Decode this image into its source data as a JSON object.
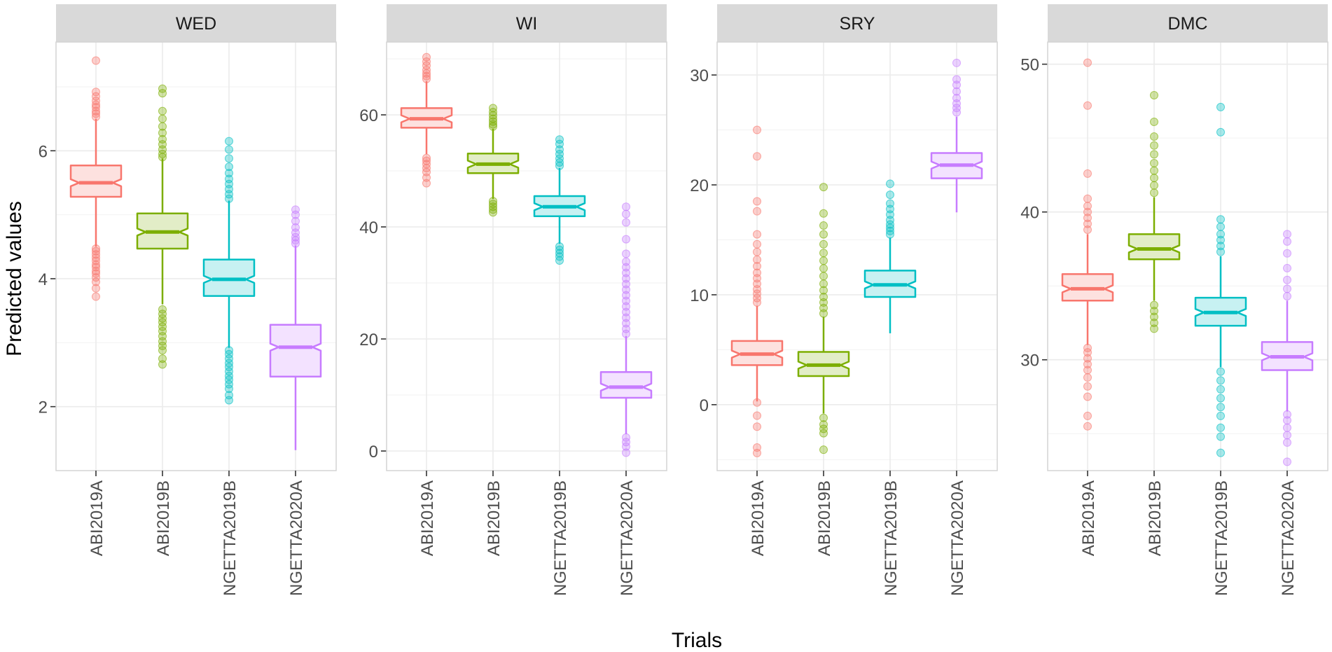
{
  "chart_data": {
    "type": "box",
    "layout": "facet_wrap 1x4, free y scales",
    "xlabel": "Trials",
    "ylabel": "Predicted values",
    "categories": [
      "ABI2019A",
      "ABI2019B",
      "NGETTA2019B",
      "NGETTA2020A"
    ],
    "colors": [
      "#F8766D",
      "#7CAE00",
      "#00BFC4",
      "#C77CFF"
    ],
    "grid": true,
    "panels": [
      {
        "title": "WED",
        "ylim": [
          1.0,
          7.7
        ],
        "yticks": [
          2,
          4,
          6
        ],
        "boxes": [
          {
            "category": "ABI2019A",
            "min": 4.5,
            "q1": 5.28,
            "median": 5.5,
            "q3": 5.77,
            "max": 6.5,
            "outliers": [
              3.72,
              3.85,
              3.95,
              4.02,
              4.08,
              4.12,
              4.18,
              4.22,
              4.28,
              4.33,
              4.38,
              4.43,
              4.47,
              6.53,
              6.58,
              6.62,
              6.68,
              6.72,
              6.78,
              6.85,
              6.92,
              7.41
            ]
          },
          {
            "category": "ABI2019B",
            "min": 3.6,
            "q1": 4.47,
            "median": 4.73,
            "q3": 5.02,
            "max": 5.88,
            "outliers": [
              2.66,
              2.75,
              2.88,
              2.95,
              3.02,
              3.1,
              3.18,
              3.25,
              3.32,
              3.38,
              3.45,
              3.52,
              5.9,
              5.95,
              6.02,
              6.1,
              6.18,
              6.28,
              6.38,
              6.5,
              6.62,
              6.9,
              6.97
            ]
          },
          {
            "category": "NGETTA2019B",
            "min": 2.92,
            "q1": 3.73,
            "median": 3.99,
            "q3": 4.3,
            "max": 5.22,
            "outliers": [
              2.1,
              2.18,
              2.28,
              2.35,
              2.42,
              2.48,
              2.55,
              2.62,
              2.68,
              2.75,
              2.82,
              2.88,
              5.25,
              5.32,
              5.4,
              5.48,
              5.56,
              5.65,
              5.75,
              5.88,
              6.02,
              6.15
            ]
          },
          {
            "category": "NGETTA2020A",
            "min": 1.32,
            "q1": 2.47,
            "median": 2.93,
            "q3": 3.28,
            "max": 4.52,
            "outliers": [
              4.55,
              4.6,
              4.65,
              4.72,
              4.8,
              4.9,
              5.0,
              5.08
            ]
          }
        ]
      },
      {
        "title": "WI",
        "ylim": [
          -3.5,
          73
        ],
        "yticks": [
          0,
          20,
          40,
          60
        ],
        "boxes": [
          {
            "category": "ABI2019A",
            "min": 53.0,
            "q1": 57.7,
            "median": 59.3,
            "q3": 61.2,
            "max": 66.0,
            "outliers": [
              47.8,
              48.8,
              49.8,
              50.5,
              51.2,
              51.8,
              52.3,
              66.4,
              66.9,
              67.4,
              68.0,
              68.8,
              69.5,
              70.3
            ]
          },
          {
            "category": "ABI2019B",
            "min": 45.0,
            "q1": 49.6,
            "median": 51.2,
            "q3": 53.1,
            "max": 57.5,
            "outliers": [
              42.6,
              43.1,
              43.6,
              44.1,
              44.6,
              57.9,
              58.3,
              58.8,
              59.3,
              59.9,
              60.5,
              61.2
            ]
          },
          {
            "category": "NGETTA2019B",
            "min": 37.0,
            "q1": 41.9,
            "median": 43.6,
            "q3": 45.5,
            "max": 50.5,
            "outliers": [
              34.0,
              34.7,
              35.3,
              35.9,
              36.5,
              50.9,
              51.5,
              52.2,
              53.0,
              53.8,
              54.8,
              55.6
            ]
          },
          {
            "category": "NGETTA2020A",
            "min": 3.0,
            "q1": 9.5,
            "median": 11.4,
            "q3": 14.1,
            "max": 20.5,
            "outliers": [
              -0.3,
              0.8,
              1.6,
              2.4,
              20.9,
              21.8,
              22.8,
              23.8,
              24.8,
              25.8,
              26.8,
              27.8,
              28.8,
              29.8,
              30.8,
              31.8,
              32.8,
              33.8,
              35.2,
              37.8,
              40.8,
              42.3,
              43.6
            ]
          }
        ]
      },
      {
        "title": "SRY",
        "ylim": [
          -6.0,
          33.0
        ],
        "yticks": [
          0,
          10,
          20,
          30
        ],
        "boxes": [
          {
            "category": "ABI2019A",
            "min": 0.3,
            "q1": 3.6,
            "median": 4.6,
            "q3": 5.8,
            "max": 9.0,
            "outliers": [
              -4.4,
              -3.9,
              -2.0,
              -1.0,
              0.2,
              9.3,
              9.7,
              10.1,
              10.5,
              11.0,
              11.5,
              12.0,
              12.6,
              13.2,
              13.9,
              14.6,
              15.5,
              17.6,
              18.5,
              22.6,
              25.0
            ]
          },
          {
            "category": "ABI2019B",
            "min": -0.8,
            "q1": 2.6,
            "median": 3.6,
            "q3": 4.8,
            "max": 8.0,
            "outliers": [
              -4.1,
              -2.6,
              -2.2,
              -1.8,
              -1.2,
              8.3,
              8.8,
              9.3,
              9.8,
              10.4,
              11.0,
              11.7,
              12.4,
              13.1,
              13.8,
              14.6,
              15.5,
              16.3,
              17.4,
              19.8
            ]
          },
          {
            "category": "NGETTA2019B",
            "min": 6.5,
            "q1": 9.8,
            "median": 10.9,
            "q3": 12.2,
            "max": 15.2,
            "outliers": [
              15.5,
              15.8,
              16.1,
              16.4,
              16.8,
              17.3,
              17.8,
              18.3,
              19.1,
              20.1
            ]
          },
          {
            "category": "NGETTA2020A",
            "min": 17.5,
            "q1": 20.6,
            "median": 21.8,
            "q3": 22.9,
            "max": 26.2,
            "outliers": [
              26.6,
              27.0,
              27.4,
              27.9,
              28.5,
              29.1,
              29.6,
              31.1
            ]
          }
        ]
      },
      {
        "title": "DMC",
        "ylim": [
          22.5,
          51.5
        ],
        "yticks": [
          30,
          40,
          50
        ],
        "boxes": [
          {
            "category": "ABI2019A",
            "min": 31.0,
            "q1": 34.0,
            "median": 34.8,
            "q3": 35.8,
            "max": 38.5,
            "outliers": [
              25.5,
              26.2,
              27.5,
              28.2,
              28.8,
              29.3,
              29.7,
              30.1,
              30.5,
              30.8,
              38.8,
              39.2,
              39.6,
              40.0,
              40.4,
              40.9,
              42.6,
              47.2,
              50.1
            ]
          },
          {
            "category": "ABI2019B",
            "min": 34.0,
            "q1": 36.8,
            "median": 37.5,
            "q3": 38.5,
            "max": 41.0,
            "outliers": [
              32.1,
              32.5,
              32.9,
              33.3,
              33.7,
              41.3,
              41.8,
              42.3,
              42.8,
              43.3,
              43.9,
              44.5,
              45.1,
              46.1,
              47.9
            ]
          },
          {
            "category": "NGETTA2019B",
            "min": 29.5,
            "q1": 32.3,
            "median": 33.2,
            "q3": 34.2,
            "max": 37.0,
            "outliers": [
              23.7,
              24.8,
              25.4,
              26.2,
              26.8,
              27.4,
              28.0,
              28.6,
              29.2,
              37.3,
              37.7,
              38.1,
              38.5,
              39.0,
              39.5,
              45.4,
              47.1
            ]
          },
          {
            "category": "NGETTA2020A",
            "min": 26.5,
            "q1": 29.3,
            "median": 30.2,
            "q3": 31.2,
            "max": 34.0,
            "outliers": [
              23.1,
              24.4,
              24.9,
              25.4,
              25.9,
              26.3,
              34.3,
              34.8,
              35.4,
              36.2,
              37.2,
              38.0,
              38.5
            ]
          }
        ]
      }
    ]
  }
}
